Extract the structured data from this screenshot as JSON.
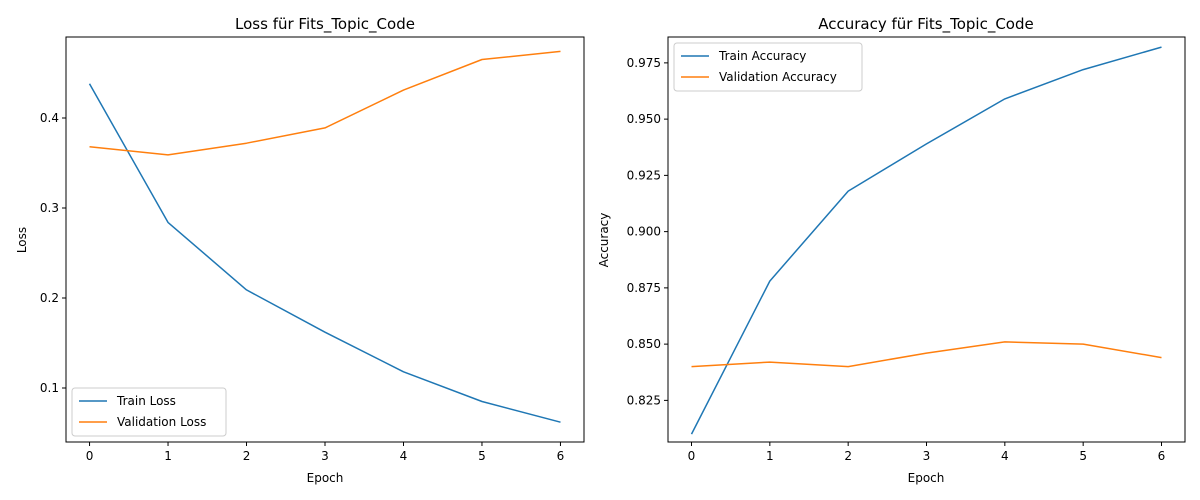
{
  "chart_data": [
    {
      "type": "line",
      "title": "Loss für Fits_Topic_Code",
      "xlabel": "Epoch",
      "ylabel": "Loss",
      "x": [
        0,
        1,
        2,
        3,
        4,
        5,
        6
      ],
      "xlim": [
        -0.3,
        6.3
      ],
      "ylim": [
        0.04,
        0.49
      ],
      "xticks": [
        "0",
        "1",
        "2",
        "3",
        "4",
        "5",
        "6"
      ],
      "yticks": [
        "0.1",
        "0.2",
        "0.3",
        "0.4"
      ],
      "legend_loc": "lower-left",
      "grid": false,
      "series": [
        {
          "name": "Train Loss",
          "color": "#1f77b4",
          "values": [
            0.438,
            0.284,
            0.209,
            0.162,
            0.118,
            0.085,
            0.062
          ]
        },
        {
          "name": "Validation Loss",
          "color": "#ff7f0e",
          "values": [
            0.368,
            0.359,
            0.372,
            0.389,
            0.431,
            0.465,
            0.474
          ]
        }
      ]
    },
    {
      "type": "line",
      "title": "Accuracy für Fits_Topic_Code",
      "xlabel": "Epoch",
      "ylabel": "Accuracy",
      "x": [
        0,
        1,
        2,
        3,
        4,
        5,
        6
      ],
      "xlim": [
        -0.3,
        6.3
      ],
      "ylim": [
        0.8065,
        0.9865
      ],
      "xticks": [
        "0",
        "1",
        "2",
        "3",
        "4",
        "5",
        "6"
      ],
      "yticks": [
        "0.825",
        "0.850",
        "0.875",
        "0.900",
        "0.925",
        "0.950",
        "0.975"
      ],
      "legend_loc": "upper-left",
      "grid": false,
      "series": [
        {
          "name": "Train Accuracy",
          "color": "#1f77b4",
          "values": [
            0.81,
            0.878,
            0.918,
            0.939,
            0.959,
            0.972,
            0.982
          ]
        },
        {
          "name": "Validation Accuracy",
          "color": "#ff7f0e",
          "values": [
            0.84,
            0.842,
            0.84,
            0.846,
            0.851,
            0.85,
            0.844
          ]
        }
      ]
    }
  ]
}
